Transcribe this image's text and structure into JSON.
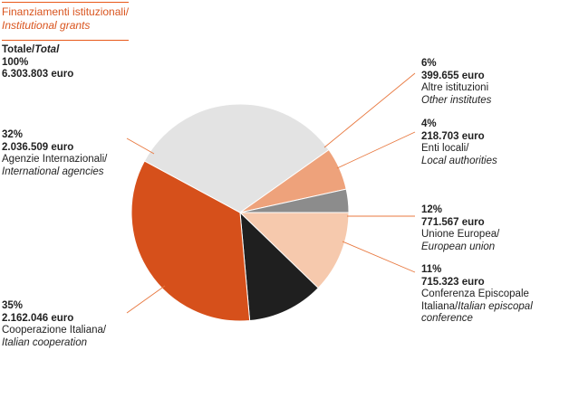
{
  "title": {
    "line1": "Finanziamenti istituzionali/",
    "line2": "Institutional grants"
  },
  "total": {
    "label_it": "Totale/",
    "label_en": "Total",
    "percent": "100%",
    "amount": "6.303.803 euro"
  },
  "chart_data": {
    "type": "pie",
    "title": "Finanziamenti istituzionali/ Institutional grants",
    "start_angle_deg": 0,
    "slices": [
      {
        "percent": "12%",
        "amount": "771.567 euro",
        "name_it": "Unione Europea/",
        "name_en": "European union",
        "value": 771567,
        "color": "#f6c9ad"
      },
      {
        "percent": "11%",
        "amount": "715.323 euro",
        "name_it": "Conferenza Episcopale",
        "name_it2": "Italiana/",
        "name_en": "Italian episcopal",
        "name_en2": "conference",
        "value": 715323,
        "color": "#1f1f1f"
      },
      {
        "percent": "35%",
        "amount": "2.162.046 euro",
        "name_it": "Cooperazione Italiana/",
        "name_en": "Italian cooperation",
        "value": 2162046,
        "color": "#d6501b"
      },
      {
        "percent": "32%",
        "amount": "2.036.509 euro",
        "name_it": "Agenzie Internazionali/",
        "name_en": "International agencies",
        "value": 2036509,
        "color": "#e3e3e3"
      },
      {
        "percent": "6%",
        "amount": "399.655 euro",
        "name_it": "Altre istituzioni",
        "name_en": "Other institutes",
        "value": 399655,
        "color": "#eea27b"
      },
      {
        "percent": "4%",
        "amount": "218.703 euro",
        "name_it": "Enti locali/",
        "name_en": "Local authorities",
        "value": 218703,
        "color": "#8c8c8c"
      }
    ]
  }
}
